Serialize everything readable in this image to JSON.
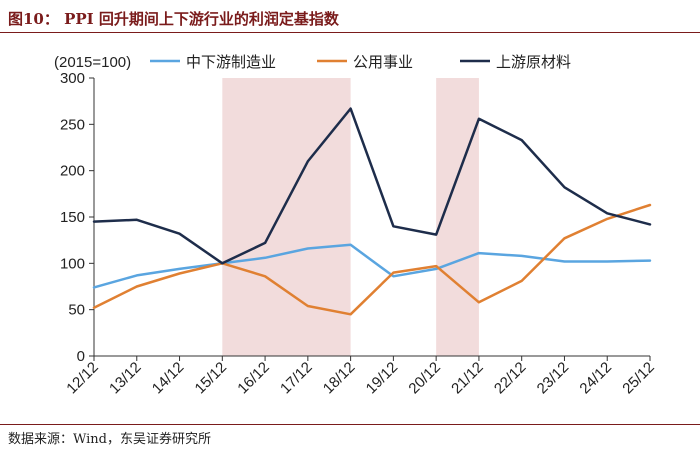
{
  "header": {
    "title": "图10： PPI 回升期间上下游行业的利润定基指数"
  },
  "footer": {
    "source": "数据来源：Wind，东吴证券研究所"
  },
  "chart_data": {
    "type": "line",
    "title": "",
    "unit_label": "(2015=100)",
    "xlabel": "",
    "ylabel": "",
    "ylim": [
      0,
      300
    ],
    "yticks": [
      0,
      50,
      100,
      150,
      200,
      250,
      300
    ],
    "categories": [
      "12/12",
      "13/12",
      "14/12",
      "15/12",
      "16/12",
      "17/12",
      "18/12",
      "19/12",
      "20/12",
      "21/12",
      "22/12",
      "23/12",
      "24/12",
      "25/12"
    ],
    "shaded_ranges": [
      [
        "15/12",
        "18/12"
      ],
      [
        "20/12",
        "21/12"
      ]
    ],
    "shade_color": "#f2dcdc",
    "legend_position": "top",
    "series": [
      {
        "name": "中下游制造业",
        "color": "#5aa5e0",
        "values": [
          74,
          87,
          94,
          100,
          106,
          116,
          120,
          86,
          94,
          111,
          108,
          102,
          102,
          103
        ]
      },
      {
        "name": "公用事业",
        "color": "#e08032",
        "values": [
          52,
          75,
          89,
          100,
          86,
          54,
          45,
          90,
          97,
          58,
          81,
          127,
          148,
          163
        ]
      },
      {
        "name": "上游原材料",
        "color": "#1e2d4b",
        "values": [
          145,
          147,
          132,
          100,
          122,
          210,
          267,
          140,
          131,
          256,
          233,
          182,
          154,
          142
        ]
      }
    ]
  }
}
